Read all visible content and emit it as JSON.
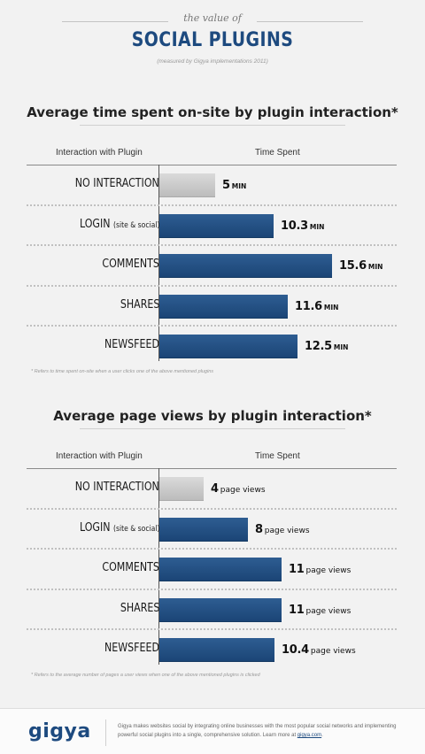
{
  "header": {
    "subtitle": "the value of",
    "title": "SOCIAL PLUGINS",
    "measured": "(measured by Gigya implementations 2011)"
  },
  "chart_data": [
    {
      "type": "bar",
      "title": "Average time spent on-site by plugin interaction*",
      "category_header": "Interaction with Plugin",
      "value_header": "Time Spent",
      "categories": [
        {
          "main": "NO INTERACTION",
          "small": ""
        },
        {
          "main": "LOGIN",
          "small": "(site & social)"
        },
        {
          "main": "COMMENTS",
          "small": ""
        },
        {
          "main": "SHARES",
          "small": ""
        },
        {
          "main": "NEWSFEED",
          "small": ""
        }
      ],
      "values": [
        5,
        10.3,
        15.6,
        11.6,
        12.5
      ],
      "unit": "MIN",
      "highlight_colors": [
        "#c8c8c8",
        "#24518a",
        "#24518a",
        "#24518a",
        "#24518a"
      ],
      "xlim": [
        0,
        20
      ],
      "footnote": "* Refers to time spent on-site when a user clicks one of the above mentioned plugins"
    },
    {
      "type": "bar",
      "title": "Average page views by plugin interaction*",
      "category_header": "Interaction with Plugin",
      "value_header": "Time Spent",
      "categories": [
        {
          "main": "NO INTERACTION",
          "small": ""
        },
        {
          "main": "LOGIN",
          "small": "(site & social)"
        },
        {
          "main": "COMMENTS",
          "small": ""
        },
        {
          "main": "SHARES",
          "small": ""
        },
        {
          "main": "NEWSFEED",
          "small": ""
        }
      ],
      "values": [
        4,
        8,
        11,
        11,
        10.4
      ],
      "unit": "page views",
      "highlight_colors": [
        "#c8c8c8",
        "#24518a",
        "#24518a",
        "#24518a",
        "#24518a"
      ],
      "xlim": [
        0,
        20
      ],
      "footnote": "* Refers to the average number of pages a user views when one of the above mentioned plugins is clicked"
    }
  ],
  "footer": {
    "logo": "gigya",
    "text": "Gigya makes websites social by integrating online businesses with the most popular social networks and implementing powerful social plugins into a single, comprehensive solution. Learn more at ",
    "link": "gigya.com",
    "end": "."
  }
}
